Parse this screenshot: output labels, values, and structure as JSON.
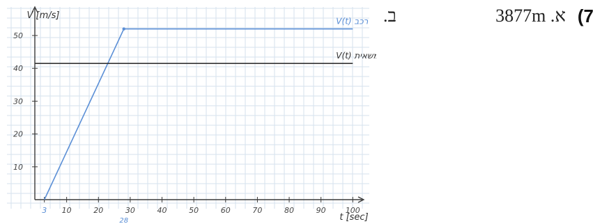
{
  "answer": {
    "question_number": "7)",
    "item_a_label": "א.",
    "item_a_value": "3877m",
    "item_b_label": "ב."
  },
  "chart_data": {
    "type": "line",
    "title": "",
    "xlabel": "t [sec]",
    "ylabel": "V [m/s]",
    "xlim": [
      0,
      103
    ],
    "ylim": [
      0,
      57
    ],
    "grid": true,
    "x_ticks": [
      "3",
      "10",
      "20",
      "30",
      "40",
      "50",
      "60",
      "70",
      "80",
      "90",
      "100"
    ],
    "y_ticks": [
      "10",
      "20",
      "30",
      "40",
      "50"
    ],
    "extra_x_tick_labels": [
      {
        "x": 28,
        "label": "28"
      }
    ],
    "series": [
      {
        "name": "רכב V(t)",
        "color": "#5b8fd6",
        "points": [
          [
            3,
            0
          ],
          [
            28,
            52
          ],
          [
            100,
            52
          ]
        ]
      },
      {
        "name": "משאית V(t)",
        "color": "#333333",
        "points": [
          [
            0,
            41.5
          ],
          [
            100,
            41.5
          ]
        ]
      }
    ]
  }
}
